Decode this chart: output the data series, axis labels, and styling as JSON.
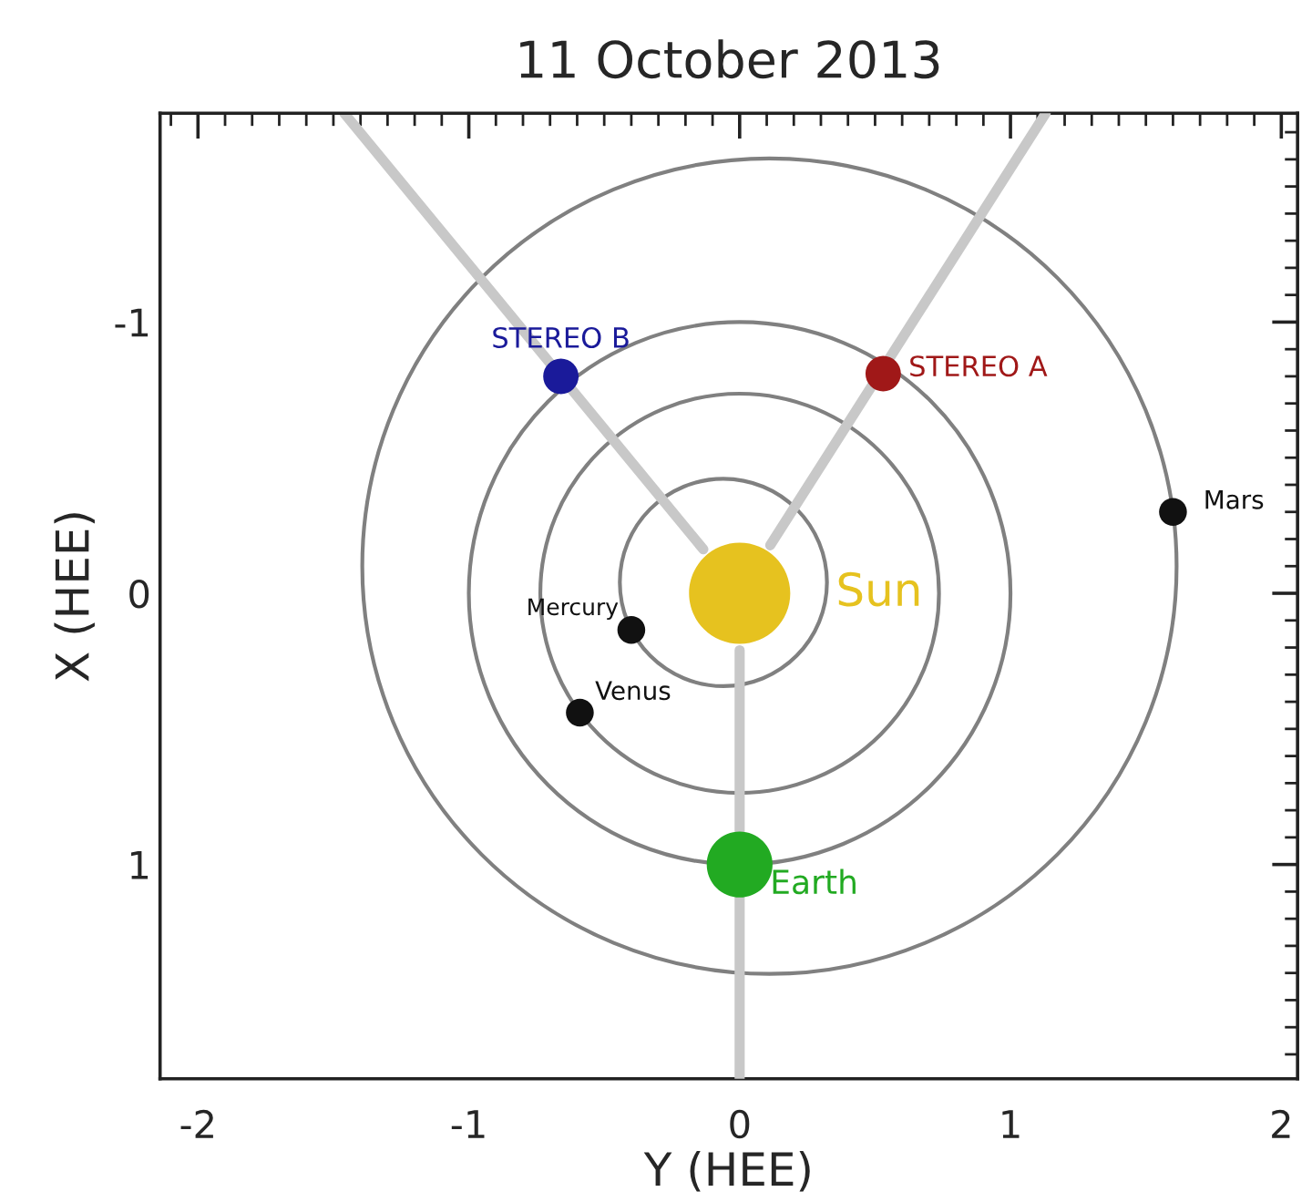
{
  "chart_data": {
    "type": "line",
    "title": "11 October 2013",
    "xlabel": "Y (HEE)",
    "ylabel": "X (HEE)",
    "xlim": [
      -2.14,
      2.06
    ],
    "ylim": [
      1.79,
      -1.77
    ],
    "xticks": [
      -2,
      -1,
      0,
      1,
      2
    ],
    "yticks": [
      -1,
      0,
      1
    ],
    "grid": false,
    "legend": false,
    "series": [
      {
        "color": "#c8c8c8",
        "x": [
          -0.134,
          -1.46
        ],
        "values": [
          -0.162,
          -1.77
        ]
      },
      {
        "color": "#c8c8c8",
        "x": [
          0.113,
          1.13
        ],
        "values": [
          -0.177,
          -1.77
        ]
      },
      {
        "color": "#c8c8c8",
        "x": [
          0,
          0
        ],
        "values": [
          0.21,
          1.79
        ]
      },
      {
        "type": "scatter",
        "marker": "circle",
        "name": "Sun",
        "color": "#e6c21f",
        "x": [
          0
        ],
        "values": [
          0
        ]
      },
      {
        "type": "scatter",
        "marker": "circle",
        "name": "Mercury",
        "color": "#111111",
        "x": [
          -0.4
        ],
        "values": [
          0.135
        ]
      },
      {
        "type": "scatter",
        "marker": "circle",
        "name": "Venus",
        "color": "#111111",
        "x": [
          -0.59
        ],
        "values": [
          0.44
        ]
      },
      {
        "type": "scatter",
        "marker": "circle",
        "name": "Earth",
        "color": "#22aa22",
        "x": [
          0
        ],
        "values": [
          1.0
        ]
      },
      {
        "type": "scatter",
        "marker": "circle",
        "name": "Mars",
        "color": "#111111",
        "x": [
          1.6
        ],
        "values": [
          -0.3
        ]
      },
      {
        "type": "scatter",
        "marker": "circle",
        "name": "STEREO A",
        "color": "#a01818",
        "x": [
          0.53
        ],
        "values": [
          -0.81
        ]
      },
      {
        "type": "scatter",
        "marker": "circle",
        "name": "STEREO B",
        "color": "#1a1a9a",
        "x": [
          -0.66
        ],
        "values": [
          -0.8
        ]
      }
    ]
  }
}
